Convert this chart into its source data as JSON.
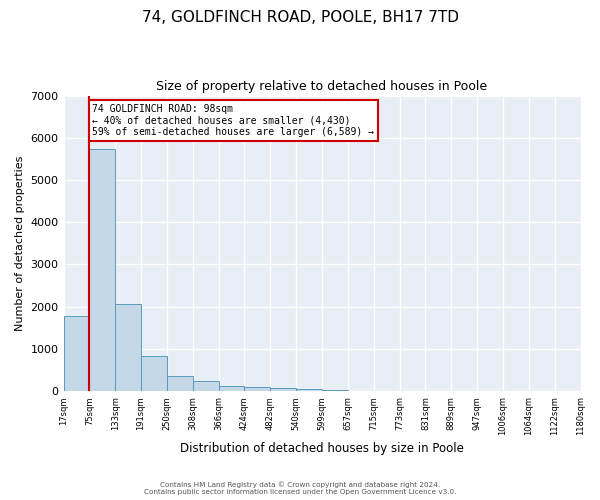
{
  "title": "74, GOLDFINCH ROAD, POOLE, BH17 7TD",
  "subtitle": "Size of property relative to detached houses in Poole",
  "xlabel": "Distribution of detached houses by size in Poole",
  "ylabel": "Number of detached properties",
  "bin_labels": [
    "17sqm",
    "75sqm",
    "133sqm",
    "191sqm",
    "250sqm",
    "308sqm",
    "366sqm",
    "424sqm",
    "482sqm",
    "540sqm",
    "599sqm",
    "657sqm",
    "715sqm",
    "773sqm",
    "831sqm",
    "889sqm",
    "947sqm",
    "1006sqm",
    "1064sqm",
    "1122sqm",
    "1180sqm"
  ],
  "bar_values": [
    1780,
    5730,
    2060,
    840,
    370,
    250,
    130,
    90,
    75,
    50,
    20,
    0,
    0,
    0,
    0,
    0,
    0,
    0,
    0,
    0
  ],
  "bar_color": "#c5d8e8",
  "bar_edge_color": "#5a9abd",
  "property_line_x": 1.0,
  "property_line_label": "74 GOLDFINCH ROAD: 98sqm",
  "annotation_line1": "← 40% of detached houses are smaller (4,430)",
  "annotation_line2": "59% of semi-detached houses are larger (6,589) →",
  "annotation_box_color": "#ffffff",
  "annotation_box_edge_color": "#cc0000",
  "line_color": "#cc0000",
  "ylim": [
    0,
    7000
  ],
  "yticks": [
    0,
    1000,
    2000,
    3000,
    4000,
    5000,
    6000,
    7000
  ],
  "plot_bg_color": "#e8eef5",
  "footer_line1": "Contains HM Land Registry data © Crown copyright and database right 2024.",
  "footer_line2": "Contains public sector information licensed under the Open Government Licence v3.0.",
  "title_fontsize": 11,
  "subtitle_fontsize": 9
}
